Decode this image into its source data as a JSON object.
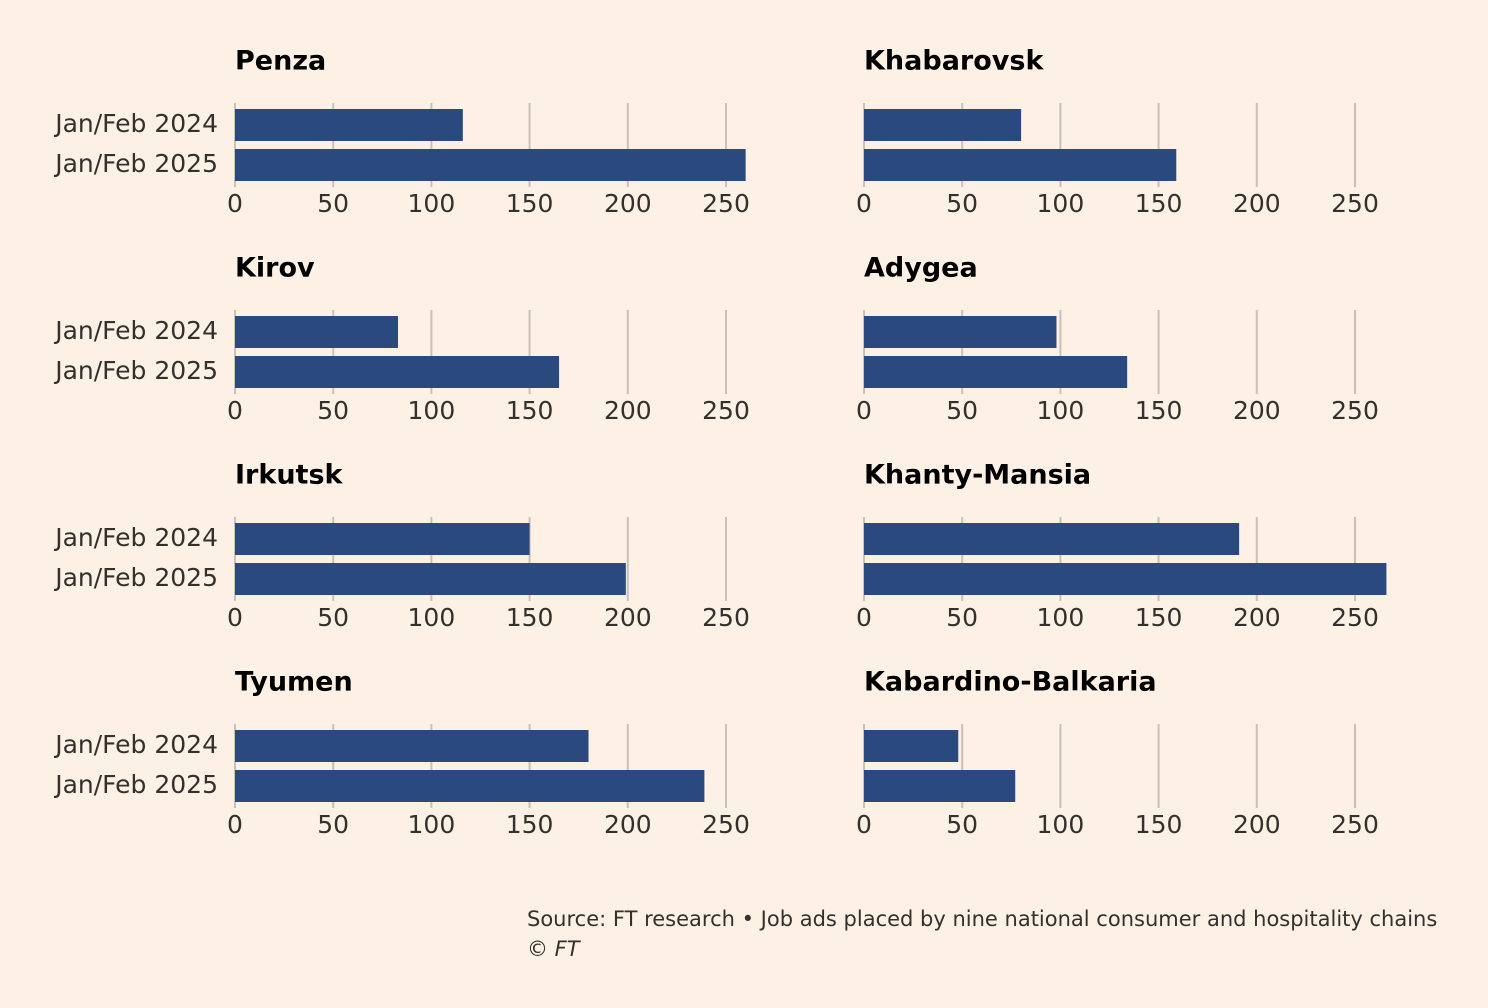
{
  "chart_data": [
    {
      "type": "bar",
      "orientation": "horizontal",
      "title": "Penza",
      "categories": [
        "Jan/Feb 2024",
        "Jan/Feb 2025"
      ],
      "values": [
        116,
        260
      ],
      "color": "#2a4a7f",
      "xlim": [
        0,
        250
      ],
      "xticks": [
        0,
        50,
        100,
        150,
        200,
        250
      ],
      "grid": true
    },
    {
      "type": "bar",
      "orientation": "horizontal",
      "title": "Khabarovsk",
      "categories": [
        "Jan/Feb 2024",
        "Jan/Feb 2025"
      ],
      "values": [
        80,
        159
      ],
      "color": "#2a4a7f",
      "xlim": [
        0,
        250
      ],
      "xticks": [
        0,
        50,
        100,
        150,
        200,
        250
      ],
      "grid": true
    },
    {
      "type": "bar",
      "orientation": "horizontal",
      "title": "Kirov",
      "categories": [
        "Jan/Feb 2024",
        "Jan/Feb 2025"
      ],
      "values": [
        83,
        165
      ],
      "color": "#2a4a7f",
      "xlim": [
        0,
        250
      ],
      "xticks": [
        0,
        50,
        100,
        150,
        200,
        250
      ],
      "grid": true
    },
    {
      "type": "bar",
      "orientation": "horizontal",
      "title": "Adygea",
      "categories": [
        "Jan/Feb 2024",
        "Jan/Feb 2025"
      ],
      "values": [
        98,
        134
      ],
      "color": "#2a4a7f",
      "xlim": [
        0,
        250
      ],
      "xticks": [
        0,
        50,
        100,
        150,
        200,
        250
      ],
      "grid": true
    },
    {
      "type": "bar",
      "orientation": "horizontal",
      "title": "Irkutsk",
      "categories": [
        "Jan/Feb 2024",
        "Jan/Feb 2025"
      ],
      "values": [
        150,
        199
      ],
      "color": "#2a4a7f",
      "xlim": [
        0,
        250
      ],
      "xticks": [
        0,
        50,
        100,
        150,
        200,
        250
      ],
      "grid": true
    },
    {
      "type": "bar",
      "orientation": "horizontal",
      "title": "Khanty-Mansia",
      "categories": [
        "Jan/Feb 2024",
        "Jan/Feb 2025"
      ],
      "values": [
        191,
        266
      ],
      "color": "#2a4a7f",
      "xlim": [
        0,
        250
      ],
      "xticks": [
        0,
        50,
        100,
        150,
        200,
        250
      ],
      "grid": true
    },
    {
      "type": "bar",
      "orientation": "horizontal",
      "title": "Tyumen",
      "categories": [
        "Jan/Feb 2024",
        "Jan/Feb 2025"
      ],
      "values": [
        180,
        239
      ],
      "color": "#2a4a7f",
      "xlim": [
        0,
        250
      ],
      "xticks": [
        0,
        50,
        100,
        150,
        200,
        250
      ],
      "grid": true
    },
    {
      "type": "bar",
      "orientation": "horizontal",
      "title": "Kabardino-Balkaria",
      "categories": [
        "Jan/Feb 2024",
        "Jan/Feb 2025"
      ],
      "values": [
        48,
        77
      ],
      "color": "#2a4a7f",
      "xlim": [
        0,
        250
      ],
      "xticks": [
        0,
        50,
        100,
        150,
        200,
        250
      ],
      "grid": true
    }
  ],
  "source": "Source: FT research • Job ads placed by nine national consumer and hospitality chains",
  "credit": "© FT"
}
